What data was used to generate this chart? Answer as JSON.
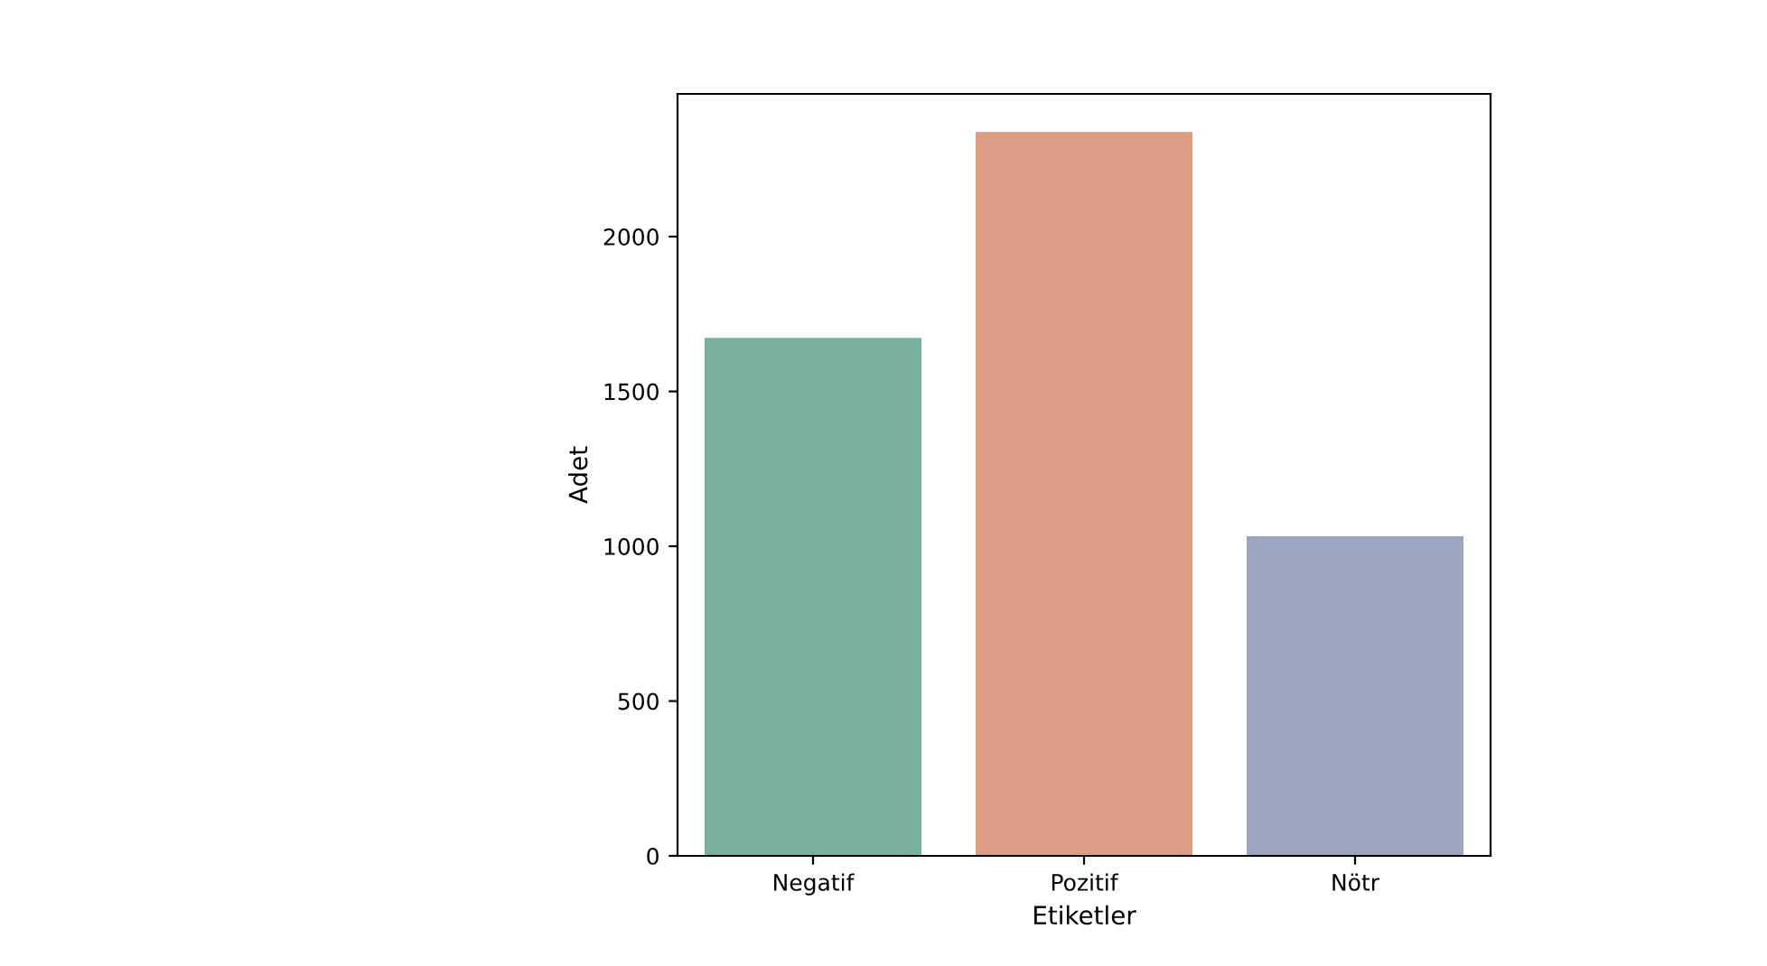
{
  "chart_data": {
    "type": "bar",
    "xlabel": "Etiketler",
    "ylabel": "Adet",
    "categories": [
      "Negatif",
      "Pozitif",
      "Nötr"
    ],
    "values": [
      1673,
      2338,
      1032
    ],
    "colors": [
      "#72b6a1",
      "#e99675",
      "#95a3c3"
    ],
    "ylim": [
      0,
      2461
    ],
    "yticks": [
      0,
      500,
      1000,
      1500,
      2000
    ],
    "grid": false
  }
}
